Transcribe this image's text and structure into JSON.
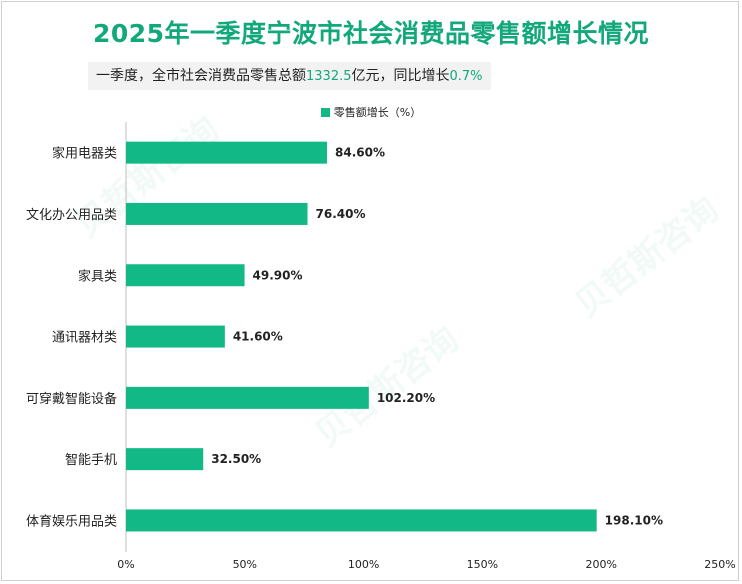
{
  "title": "2025年一季度宁波市社会消费品零售额增长情况",
  "subtitle": {
    "prefix": "一季度，全市社会消费品零售总额",
    "total": "1332.5",
    "middle": "亿元，同比增长",
    "growth": "0.7%"
  },
  "watermark": "贝哲斯咨询",
  "colors": {
    "bar": "#12b886",
    "title": "#12a87c"
  },
  "chart_data": {
    "type": "bar",
    "orientation": "horizontal",
    "categories": [
      "家用电器类",
      "文化办公用品类",
      "家具类",
      "通讯器材类",
      "可穿戴智能设备",
      "智能手机",
      "体育娱乐用品类"
    ],
    "series": [
      {
        "name": "零售额增长（%）",
        "values": [
          84.6,
          76.4,
          49.9,
          41.6,
          102.2,
          32.5,
          198.1
        ]
      }
    ],
    "value_labels": [
      "84.60%",
      "76.40%",
      "49.90%",
      "41.60%",
      "102.20%",
      "32.50%",
      "198.10%"
    ],
    "x_ticks": [
      "0%",
      "50%",
      "100%",
      "150%",
      "200%",
      "250%"
    ],
    "xlim": [
      0,
      250
    ],
    "legend": "top-center",
    "grid": false
  }
}
